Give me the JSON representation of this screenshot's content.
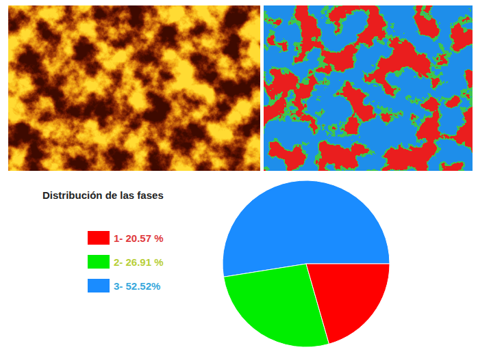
{
  "chart_data": {
    "type": "pie",
    "title": "Distribución de las fases",
    "categories": [
      "1- 20.57 %",
      "2- 26.91 %",
      "3- 52.52%"
    ],
    "values": [
      20.57,
      26.91,
      52.52
    ],
    "colors": [
      "#ff0000",
      "#00ee00",
      "#1a8cff"
    ],
    "legend": "left"
  }
}
